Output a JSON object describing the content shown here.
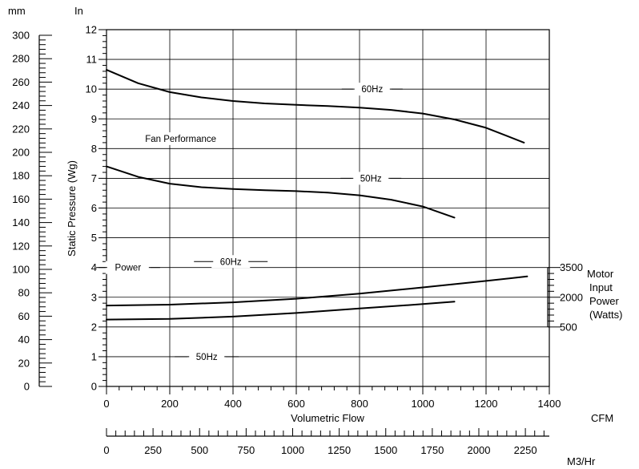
{
  "chart_data": {
    "type": "line",
    "title": "",
    "xlabel": "Volumetric Flow",
    "ylabel": "Static Pressure (Wg)",
    "x_unit": "CFM",
    "x_unit2": "M3/Hr",
    "y_unit": "In",
    "y_unit2": "mm",
    "xlim": [
      0,
      1400
    ],
    "ylim": [
      0,
      12
    ],
    "x_ticks": [
      0,
      200,
      400,
      600,
      800,
      1000,
      1200,
      1400
    ],
    "y_ticks": [
      0,
      1,
      2,
      3,
      4,
      5,
      6,
      7,
      8,
      9,
      10,
      11,
      12
    ],
    "m3hr_ticks": [
      0,
      250,
      500,
      750,
      1000,
      1250,
      1500,
      1750,
      2000,
      2250
    ],
    "mm_ticks": [
      0,
      20,
      40,
      60,
      80,
      100,
      120,
      140,
      160,
      180,
      200,
      220,
      240,
      260,
      280,
      300
    ],
    "power_axis": {
      "label_lines": [
        "Motor",
        "Input",
        "Power",
        "(Watts)"
      ],
      "ticks": [
        {
          "label": "3500",
          "y": 4.0
        },
        {
          "label": "2000",
          "y": 3.0
        },
        {
          "label": "500",
          "y": 2.0
        }
      ]
    },
    "grid": true,
    "annotations": {
      "fan_performance": "Fan Performance",
      "power": "Power",
      "pressure_60": "60Hz",
      "pressure_50": "50Hz",
      "power_60": "60Hz",
      "power_50": "50Hz"
    },
    "series": [
      {
        "name": "60Hz",
        "group": "fan",
        "x": [
          0,
          100,
          200,
          300,
          400,
          500,
          600,
          700,
          800,
          900,
          1000,
          1100,
          1200,
          1320
        ],
        "y": [
          10.65,
          10.2,
          9.9,
          9.72,
          9.6,
          9.52,
          9.47,
          9.43,
          9.38,
          9.3,
          9.18,
          8.98,
          8.7,
          8.2
        ]
      },
      {
        "name": "50Hz",
        "group": "fan",
        "x": [
          0,
          100,
          200,
          300,
          400,
          500,
          600,
          700,
          800,
          900,
          1000,
          1100
        ],
        "y": [
          7.4,
          7.05,
          6.82,
          6.7,
          6.64,
          6.6,
          6.57,
          6.52,
          6.43,
          6.28,
          6.05,
          5.68
        ]
      },
      {
        "name": "60Hz",
        "group": "power",
        "x": [
          0,
          200,
          400,
          600,
          800,
          1000,
          1200,
          1330
        ],
        "y": [
          2.72,
          2.75,
          2.83,
          2.95,
          3.12,
          3.33,
          3.55,
          3.7
        ]
      },
      {
        "name": "50Hz",
        "group": "power",
        "x": [
          0,
          200,
          400,
          600,
          800,
          1000,
          1100
        ],
        "y": [
          2.25,
          2.27,
          2.35,
          2.47,
          2.62,
          2.77,
          2.85
        ]
      }
    ]
  }
}
